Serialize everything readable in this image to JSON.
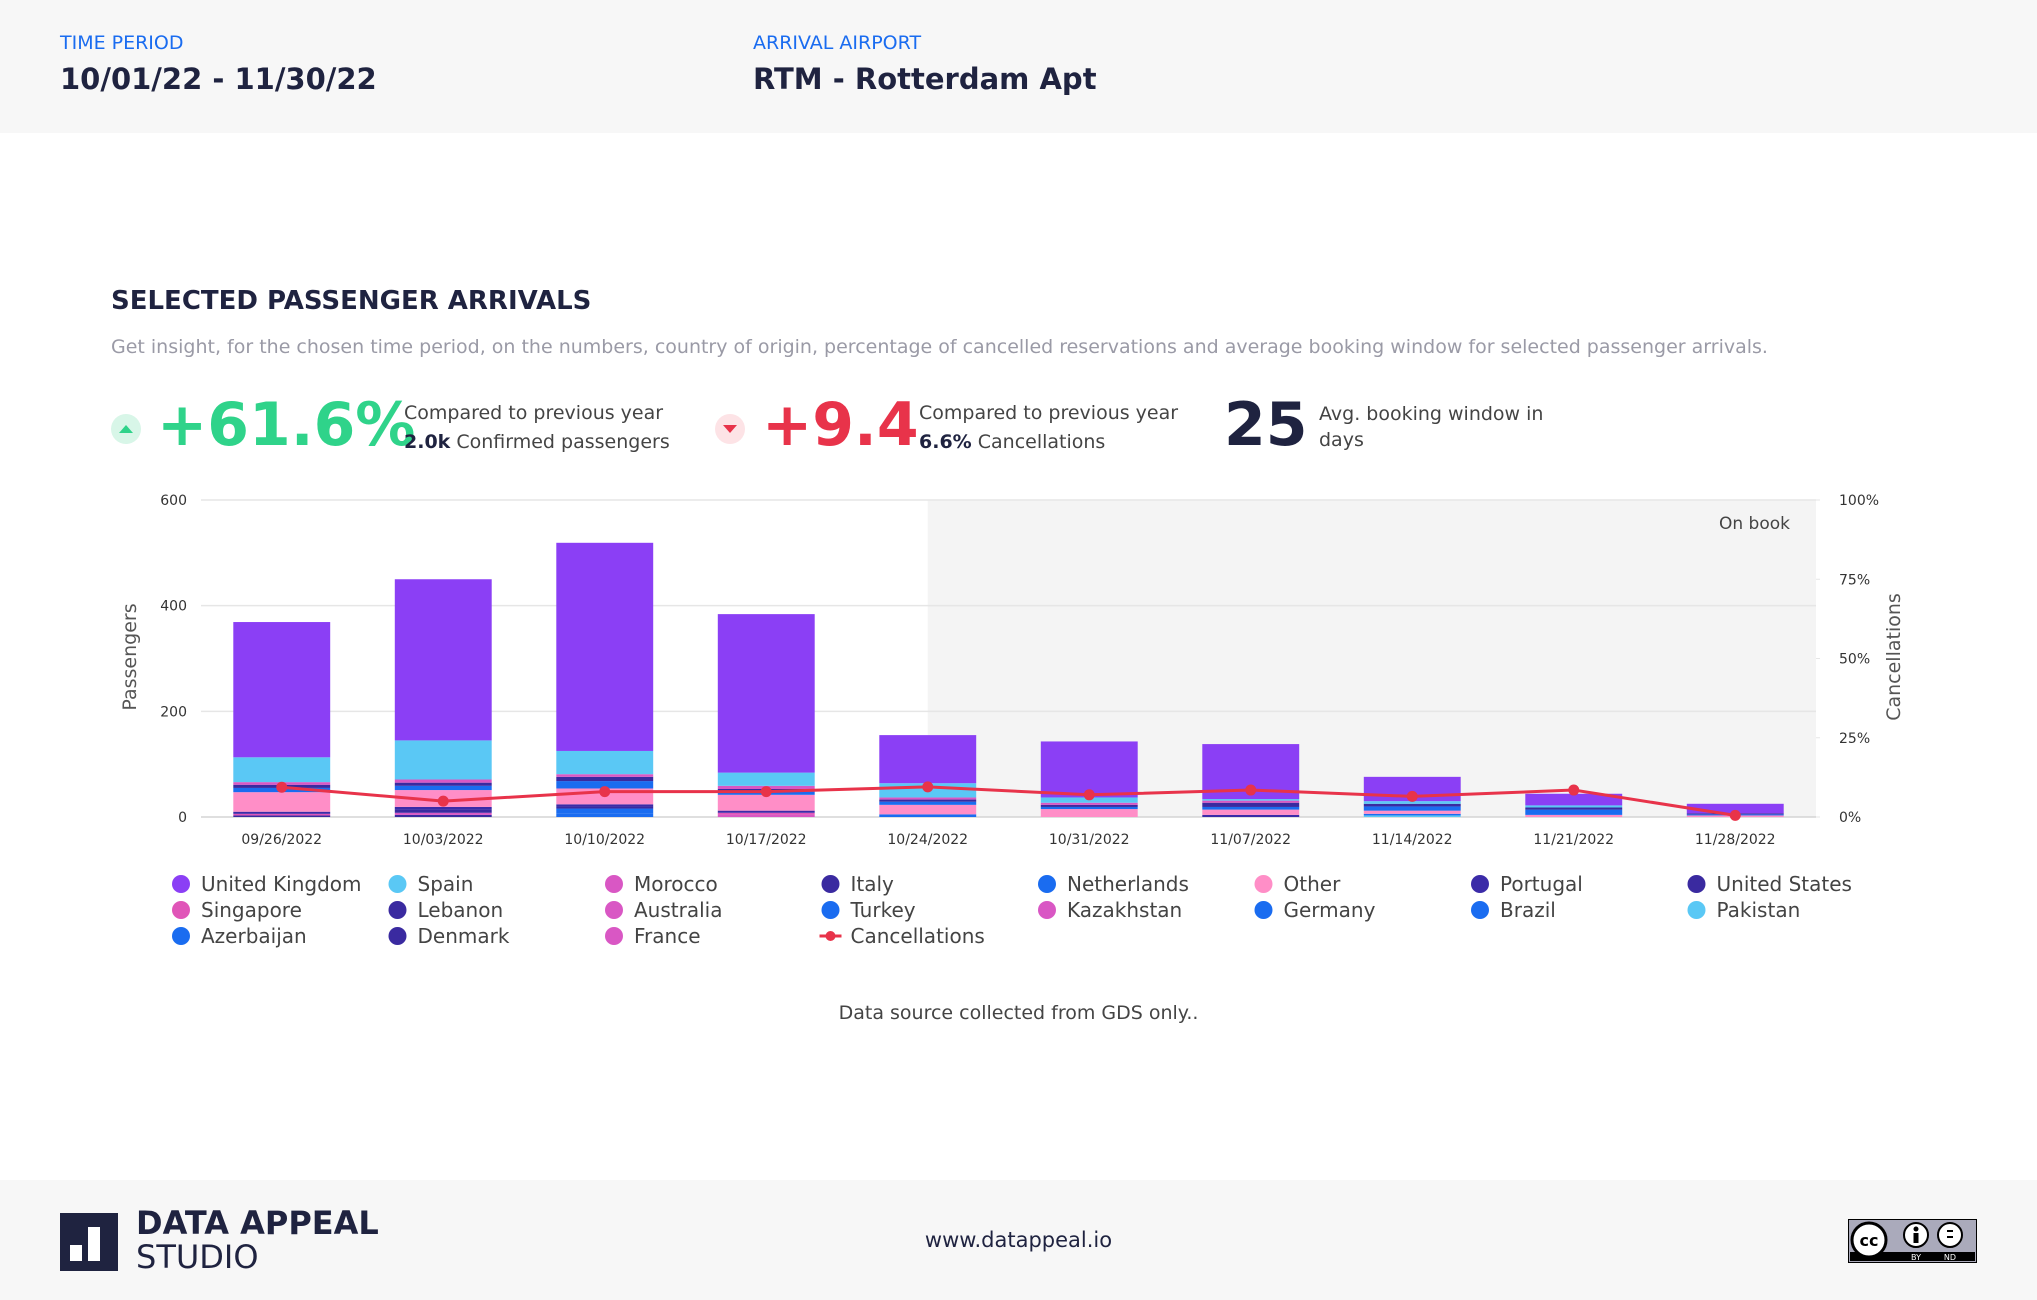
{
  "header": {
    "time_period": {
      "label": "TIME PERIOD",
      "value": "10/01/22 - 11/30/22"
    },
    "arrival_airport": {
      "label": "ARRIVAL AIRPORT",
      "value": "RTM - Rotterdam Apt"
    }
  },
  "section": {
    "title": "SELECTED PASSENGER ARRIVALS",
    "subtitle": "Get insight, for the chosen time period, on the numbers, country of origin, percentage of cancelled reservations and average booking window for selected passenger arrivals."
  },
  "kpis": [
    {
      "value": "+61.6%",
      "line1": "Compared to previous year",
      "strong": "2.0k",
      "label": "Confirmed passengers"
    },
    {
      "value": "+9.4",
      "line1": "Compared to previous year",
      "strong": "6.6%",
      "label": "Cancellations"
    },
    {
      "value": "25",
      "label": "Avg. booking window in days"
    }
  ],
  "chart_data": {
    "type": "bar",
    "stacked": true,
    "y_label": "Passengers",
    "y2_label": "Cancellations",
    "annotation": "On book",
    "categories": [
      "09/26/2022",
      "10/03/2022",
      "10/10/2022",
      "10/17/2022",
      "10/24/2022",
      "10/31/2022",
      "11/07/2022",
      "11/14/2022",
      "11/21/2022",
      "11/28/2022"
    ],
    "ylim": [
      0,
      600
    ],
    "yticks": [
      0,
      200,
      400,
      600
    ],
    "y2lim": [
      0,
      100
    ],
    "y2ticks": [
      {
        "value": 0,
        "label": "0%"
      },
      {
        "value": 25,
        "label": "25%"
      },
      {
        "value": 50,
        "label": "50%"
      },
      {
        "value": 75,
        "label": "75%"
      },
      {
        "value": 100,
        "label": "100%"
      }
    ],
    "grid": true,
    "series": [
      {
        "name": "United Kingdom",
        "color": "#8b3ff5",
        "values": [
          256,
          305,
          394,
          300,
          91,
          106,
          104,
          46,
          22,
          18
        ]
      },
      {
        "name": "Spain",
        "color": "#5ac8f5",
        "values": [
          47,
          74,
          44,
          25,
          27,
          10,
          3,
          5,
          4,
          0
        ]
      },
      {
        "name": "Morocco",
        "color": "#d957c4",
        "values": [
          5,
          6,
          5,
          6,
          4,
          4,
          4,
          0,
          0,
          0
        ]
      },
      {
        "name": "Italy",
        "color": "#3a2aa0",
        "values": [
          6,
          6,
          8,
          5,
          4,
          4,
          8,
          5,
          4,
          2
        ]
      },
      {
        "name": "Netherlands",
        "color": "#1a6cf0",
        "values": [
          8,
          8,
          14,
          6,
          6,
          4,
          5,
          8,
          10,
          2
        ]
      },
      {
        "name": "Other",
        "color": "#ff8ec7",
        "values": [
          37,
          32,
          30,
          30,
          18,
          15,
          10,
          6,
          4,
          3
        ]
      },
      {
        "name": "Portugal",
        "color": "#3b2ba8",
        "values": [
          4,
          5,
          4,
          4,
          0,
          0,
          4,
          0,
          0,
          0
        ]
      },
      {
        "name": "United States",
        "color": "#3a2aa0",
        "values": [
          0,
          6,
          4,
          0,
          0,
          0,
          0,
          0,
          0,
          0
        ]
      },
      {
        "name": "Singapore",
        "color": "#e055b8",
        "values": [
          3,
          0,
          0,
          4,
          0,
          0,
          0,
          0,
          0,
          0
        ]
      },
      {
        "name": "Lebanon",
        "color": "#3a2aa0",
        "values": [
          3,
          0,
          0,
          0,
          0,
          0,
          0,
          0,
          0,
          0
        ]
      },
      {
        "name": "Australia",
        "color": "#d957c4",
        "values": [
          0,
          4,
          0,
          0,
          0,
          0,
          0,
          0,
          0,
          0
        ]
      },
      {
        "name": "Turkey",
        "color": "#1a6cf0",
        "values": [
          0,
          0,
          10,
          0,
          0,
          0,
          0,
          0,
          0,
          0
        ]
      },
      {
        "name": "Kazakhstan",
        "color": "#d957c4",
        "values": [
          0,
          0,
          0,
          4,
          0,
          0,
          0,
          0,
          0,
          0
        ]
      },
      {
        "name": "Germany",
        "color": "#1a6cf0",
        "values": [
          0,
          0,
          0,
          0,
          5,
          0,
          0,
          0,
          0,
          0
        ]
      },
      {
        "name": "Brazil",
        "color": "#1a6cf0",
        "values": [
          0,
          0,
          0,
          0,
          0,
          0,
          0,
          3,
          0,
          0
        ]
      },
      {
        "name": "Pakistan",
        "color": "#5ac8f5",
        "values": [
          0,
          0,
          0,
          0,
          0,
          0,
          0,
          3,
          0,
          0
        ]
      },
      {
        "name": "Azerbaijan",
        "color": "#1a6cf0",
        "values": [
          0,
          0,
          6,
          0,
          0,
          0,
          0,
          0,
          0,
          0
        ]
      },
      {
        "name": "Denmark",
        "color": "#3a2aa0",
        "values": [
          0,
          4,
          0,
          0,
          0,
          0,
          0,
          0,
          0,
          0
        ]
      },
      {
        "name": "France",
        "color": "#d957c4",
        "values": [
          0,
          0,
          0,
          0,
          0,
          0,
          0,
          0,
          0,
          0
        ]
      },
      {
        "name": "Cancellations",
        "color": "#e8334a",
        "type": "line",
        "axis": "y2",
        "values": [
          9.4,
          5,
          8,
          8,
          9.5,
          7,
          8.5,
          6.5,
          8.5,
          0.5
        ]
      }
    ]
  },
  "note": "Data source collected from GDS only..",
  "footer": {
    "logo_line1": "DATA APPEAL",
    "logo_line2": "STUDIO",
    "url": "www.datappeal.io",
    "license": [
      "BY",
      "ND"
    ]
  }
}
